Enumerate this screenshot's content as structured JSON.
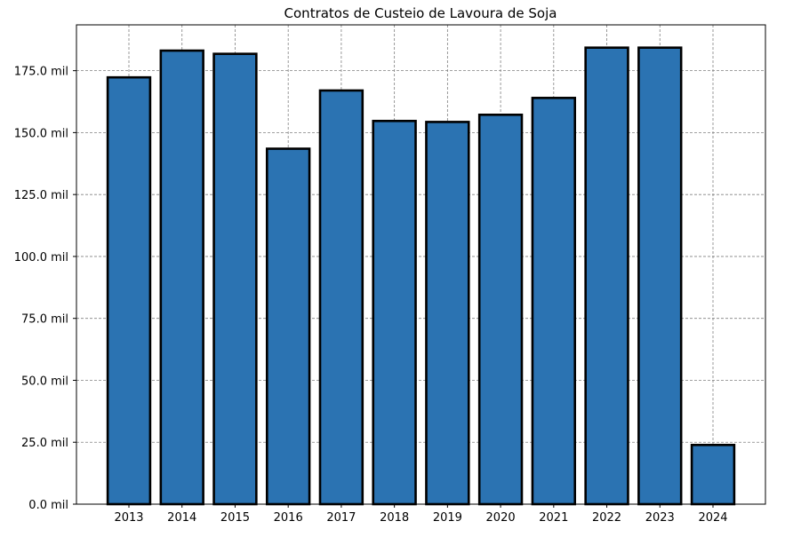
{
  "chart_data": {
    "type": "bar",
    "title": "Contratos de Custeio de Lavoura de Soja",
    "xlabel": "",
    "ylabel": "",
    "categories": [
      "2013",
      "2014",
      "2015",
      "2016",
      "2017",
      "2018",
      "2019",
      "2020",
      "2021",
      "2022",
      "2023",
      "2024"
    ],
    "values": [
      172300,
      183100,
      181800,
      143500,
      167000,
      154700,
      154300,
      157200,
      164000,
      184300,
      184300,
      23900
    ],
    "ylim": [
      0,
      193500
    ],
    "yticks": [
      0,
      25000,
      50000,
      75000,
      100000,
      125000,
      150000,
      175000
    ],
    "ytick_labels": [
      "0.0 mil",
      "25.0 mil",
      "50.0 mil",
      "75.0 mil",
      "100.0 mil",
      "125.0 mil",
      "150.0 mil",
      "175.0 mil"
    ],
    "grid": true,
    "bar_color": "#2b73b2",
    "edge_color": "#000000"
  }
}
